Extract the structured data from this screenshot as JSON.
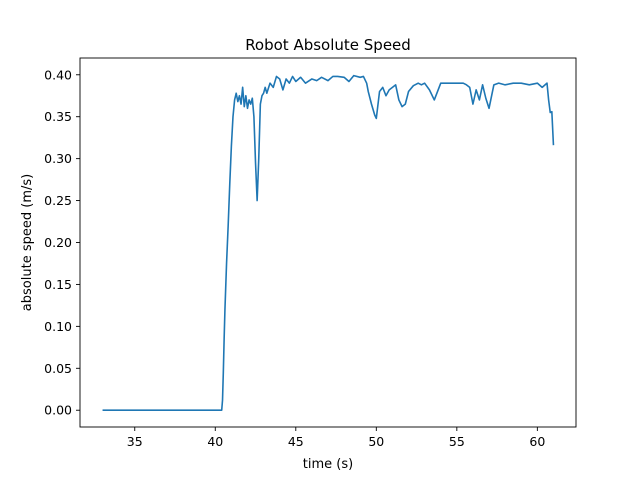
{
  "chart_data": {
    "type": "line",
    "title": "Robot Absolute Speed",
    "xlabel": "time (s)",
    "ylabel": "absolute speed (m/s)",
    "xlim": [
      31.6,
      62.4
    ],
    "ylim": [
      -0.02,
      0.42
    ],
    "xticks": [
      35,
      40,
      45,
      50,
      55,
      60
    ],
    "yticks": [
      0.0,
      0.05,
      0.1,
      0.15,
      0.2,
      0.25,
      0.3,
      0.35,
      0.4
    ],
    "xtick_labels": [
      "35",
      "40",
      "45",
      "50",
      "55",
      "60"
    ],
    "ytick_labels": [
      "0.00",
      "0.05",
      "0.10",
      "0.15",
      "0.20",
      "0.25",
      "0.30",
      "0.35",
      "0.40"
    ],
    "grid": false,
    "legend": "none",
    "series": [
      {
        "color": "#1f77b4",
        "x": [
          33.0,
          40.4,
          40.45,
          40.5,
          40.55,
          40.6,
          40.7,
          40.8,
          40.9,
          41.0,
          41.1,
          41.2,
          41.3,
          41.4,
          41.5,
          41.6,
          41.7,
          41.8,
          41.9,
          42.0,
          42.1,
          42.2,
          42.3,
          42.4,
          42.5,
          42.6,
          42.7,
          42.8,
          42.9,
          43.0,
          43.1,
          43.2,
          43.4,
          43.6,
          43.8,
          44.0,
          44.2,
          44.4,
          44.6,
          44.8,
          45.0,
          45.3,
          45.6,
          46.0,
          46.3,
          46.6,
          47.0,
          47.3,
          47.6,
          48.0,
          48.3,
          48.6,
          49.0,
          49.2,
          49.4,
          49.5,
          49.7,
          49.9,
          50.0,
          50.2,
          50.4,
          50.6,
          50.8,
          51.0,
          51.2,
          51.4,
          51.6,
          51.8,
          52.0,
          52.3,
          52.6,
          52.8,
          53.0,
          53.3,
          53.6,
          54.0,
          54.5,
          55.0,
          55.4,
          55.6,
          55.8,
          56.0,
          56.2,
          56.4,
          56.6,
          56.8,
          57.0,
          57.3,
          57.6,
          58.0,
          58.5,
          59.0,
          59.5,
          60.0,
          60.3,
          60.6,
          60.7,
          60.8,
          60.9,
          61.0
        ],
        "y": [
          0.0,
          0.0,
          0.012,
          0.045,
          0.085,
          0.12,
          0.175,
          0.22,
          0.27,
          0.315,
          0.35,
          0.37,
          0.378,
          0.368,
          0.375,
          0.365,
          0.385,
          0.362,
          0.375,
          0.36,
          0.37,
          0.365,
          0.372,
          0.35,
          0.295,
          0.25,
          0.3,
          0.365,
          0.375,
          0.378,
          0.385,
          0.378,
          0.39,
          0.385,
          0.398,
          0.395,
          0.382,
          0.395,
          0.39,
          0.398,
          0.392,
          0.397,
          0.39,
          0.395,
          0.393,
          0.397,
          0.393,
          0.398,
          0.398,
          0.397,
          0.392,
          0.399,
          0.397,
          0.398,
          0.39,
          0.38,
          0.365,
          0.352,
          0.348,
          0.38,
          0.385,
          0.375,
          0.382,
          0.385,
          0.388,
          0.37,
          0.362,
          0.365,
          0.38,
          0.387,
          0.39,
          0.388,
          0.39,
          0.382,
          0.37,
          0.39,
          0.39,
          0.39,
          0.39,
          0.388,
          0.385,
          0.365,
          0.382,
          0.37,
          0.388,
          0.372,
          0.36,
          0.388,
          0.39,
          0.388,
          0.39,
          0.39,
          0.388,
          0.39,
          0.385,
          0.39,
          0.37,
          0.355,
          0.356,
          0.316
        ]
      }
    ]
  }
}
